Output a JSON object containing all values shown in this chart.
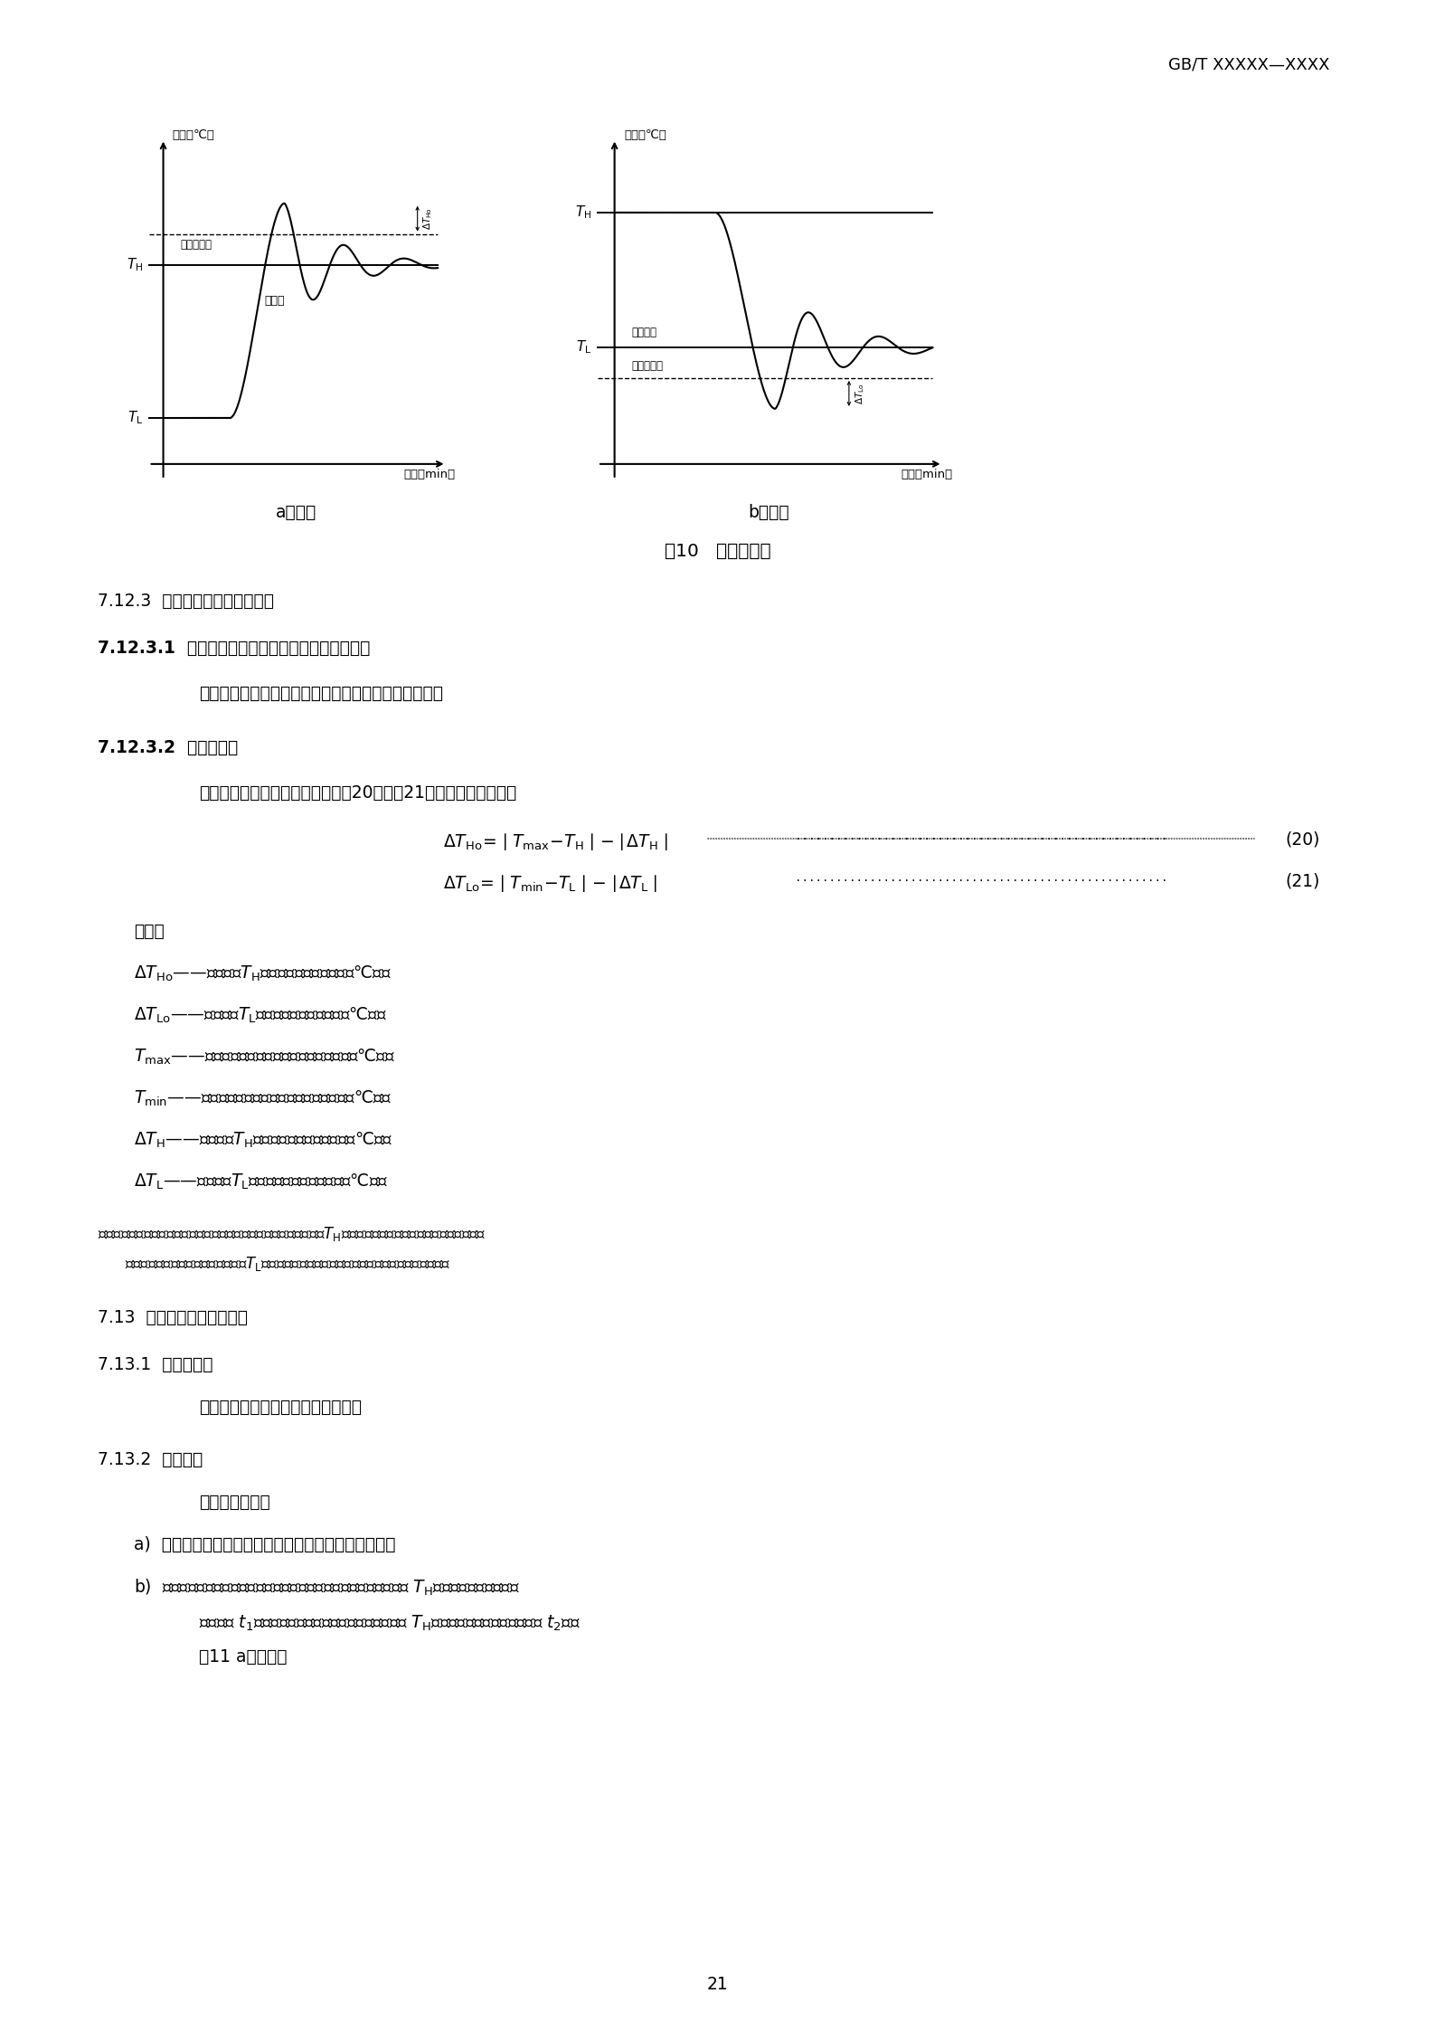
{
  "bg_color": "#ffffff",
  "header": "GB/T XXXXX—XXXX",
  "fig_caption": "图10   温度过冲量",
  "sub_a": "a）升温",
  "sub_b": "b）降温",
  "ylabel": "温度（℃）",
  "xlabel": "时间（min）",
  "shang_piancha": "温度上偏差",
  "she_ding_zhi": "设定值",
  "she_ding_wendu": "设定温度",
  "xia_piancha": "温度下偏差",
  "s7123": "7.12.3  数据处理及计算检验结果",
  "s71231_title": "7.12.3.1  将测得的温度值按测量系统的修正値修正",
  "s71231_body": "对所记录的测量数据，按测量系统的修正値进行修正；",
  "s71232_title": "7.12.3.2  温度过冲量",
  "s71232_body": "取经修正后的测量数据，按公式（20）、（21）计算温度过冲量：",
  "formula20": "$\\Delta T_{\\mathrm{Ho}}\\!=\\!\\mid T_{\\mathrm{max}}\\!-\\!T_{\\mathrm{H}}\\mid\\!-\\!\\mid\\!\\Delta T_{\\mathrm{H}}\\mid$",
  "formula21": "$\\Delta T_{\\mathrm{Lo}}\\!=\\!\\mid T_{\\mathrm{min}}\\!-\\!T_{\\mathrm{L}}\\mid\\!-\\!\\mid\\!\\Delta T_{\\mathrm{L}}\\mid$",
  "num20": "(20)",
  "num21": "(21)",
  "shizi": "式中：",
  "def1": "$\\Delta T_{\\mathrm{Ho}}$——高温温度$T_{\\mathrm{H}}$过冲量，单位为摄氏度（℃）；",
  "def2": "$\\Delta T_{\\mathrm{Lo}}$——低温温度$T_{\\mathrm{L}}$过冲量，单位为摄氏度（℃）；",
  "def3": "$T_{\\mathrm{max}}$——测量点实测的最高温度，单位为摄氏度（℃）；",
  "def4": "$T_{\\mathrm{min}}$——测量点实测的最低温度，单位为摄氏度（℃）；",
  "def5": "$\\Delta T_{\\mathrm{H}}$——设定温度$T_{\\mathrm{H}}$允许偏差，单位为摄氏度（℃）；",
  "def6": "$\\Delta T_{\\mathrm{L}}$——设定温度$T_{\\mathrm{L}}$允许偏差，单位为摄氏度（℃）。",
  "note_line1": "注：试验筱升温（或高温恢复）时，测量点的温度没有超过设定温度$T_{\\mathrm{H}}$偏差的上限値，试验筱降温（或低温恢复）",
  "note_line2": "时，测量点的温度没有超过设定温度$T_{\\mathrm{L}}$偏差的下限値，则不存在温度过冲，即没有温度过冲量。",
  "s713": "7.13  温度过冲恢复时间检验",
  "s7131": "7.13.1  测量点位置",
  "s7131_body": "测量点位置与温度过冲量位置一致。",
  "s7132": "7.13.2  检验步骤",
  "s7132_body": "检验步骤如下：",
  "step_a": "a)  温度过冲恢复时间检验与温度过冲量检验同时进行；",
  "step_b1": "b)  在试验筱升温（或高温恢复）过程中，当测量点温度超过设定温度 $T_{\\mathrm{H}}$偏差的上限値时，记录",
  "step_b2": "即刻时间 $t_1$。当测量点温度恢复到并稳定在设定温度 $T_{\\mathrm{H}}$偏差范围内时，记录即刻时间 $t_2$，见",
  "step_b3": "图11 a）所示；",
  "page": "21",
  "TH_a": 6.5,
  "TL_a": 1.5,
  "peak_a": 8.5,
  "TH_b": 8.2,
  "TL_b": 3.8,
  "trough_b": 1.8
}
